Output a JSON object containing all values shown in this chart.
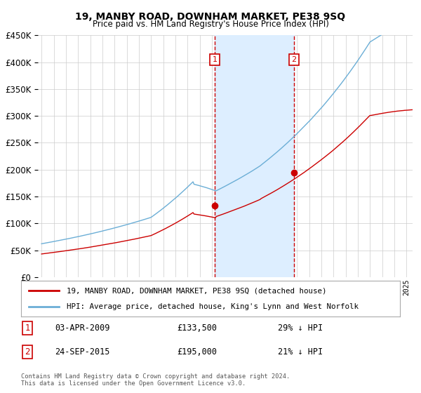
{
  "title": "19, MANBY ROAD, DOWNHAM MARKET, PE38 9SQ",
  "subtitle": "Price paid vs. HM Land Registry's House Price Index (HPI)",
  "legend_line1": "19, MANBY ROAD, DOWNHAM MARKET, PE38 9SQ (detached house)",
  "legend_line2": "HPI: Average price, detached house, King's Lynn and West Norfolk",
  "annotation1_date": "03-APR-2009",
  "annotation1_price": "£133,500",
  "annotation1_hpi": "29% ↓ HPI",
  "annotation1_year": 2009.25,
  "annotation1_value": 133500,
  "annotation2_date": "24-SEP-2015",
  "annotation2_price": "£195,000",
  "annotation2_hpi": "21% ↓ HPI",
  "annotation2_year": 2015.73,
  "annotation2_value": 195000,
  "hpi_color": "#6baed6",
  "price_color": "#cc0000",
  "dot_color": "#cc0000",
  "vline_color": "#cc0000",
  "shade_color": "#ddeeff",
  "background_color": "#ffffff",
  "grid_color": "#cccccc",
  "ylim": [
    0,
    450000
  ],
  "xlim_start": 1995,
  "xlim_end": 2025,
  "copyright_text": "Contains HM Land Registry data © Crown copyright and database right 2024.\nThis data is licensed under the Open Government Licence v3.0."
}
